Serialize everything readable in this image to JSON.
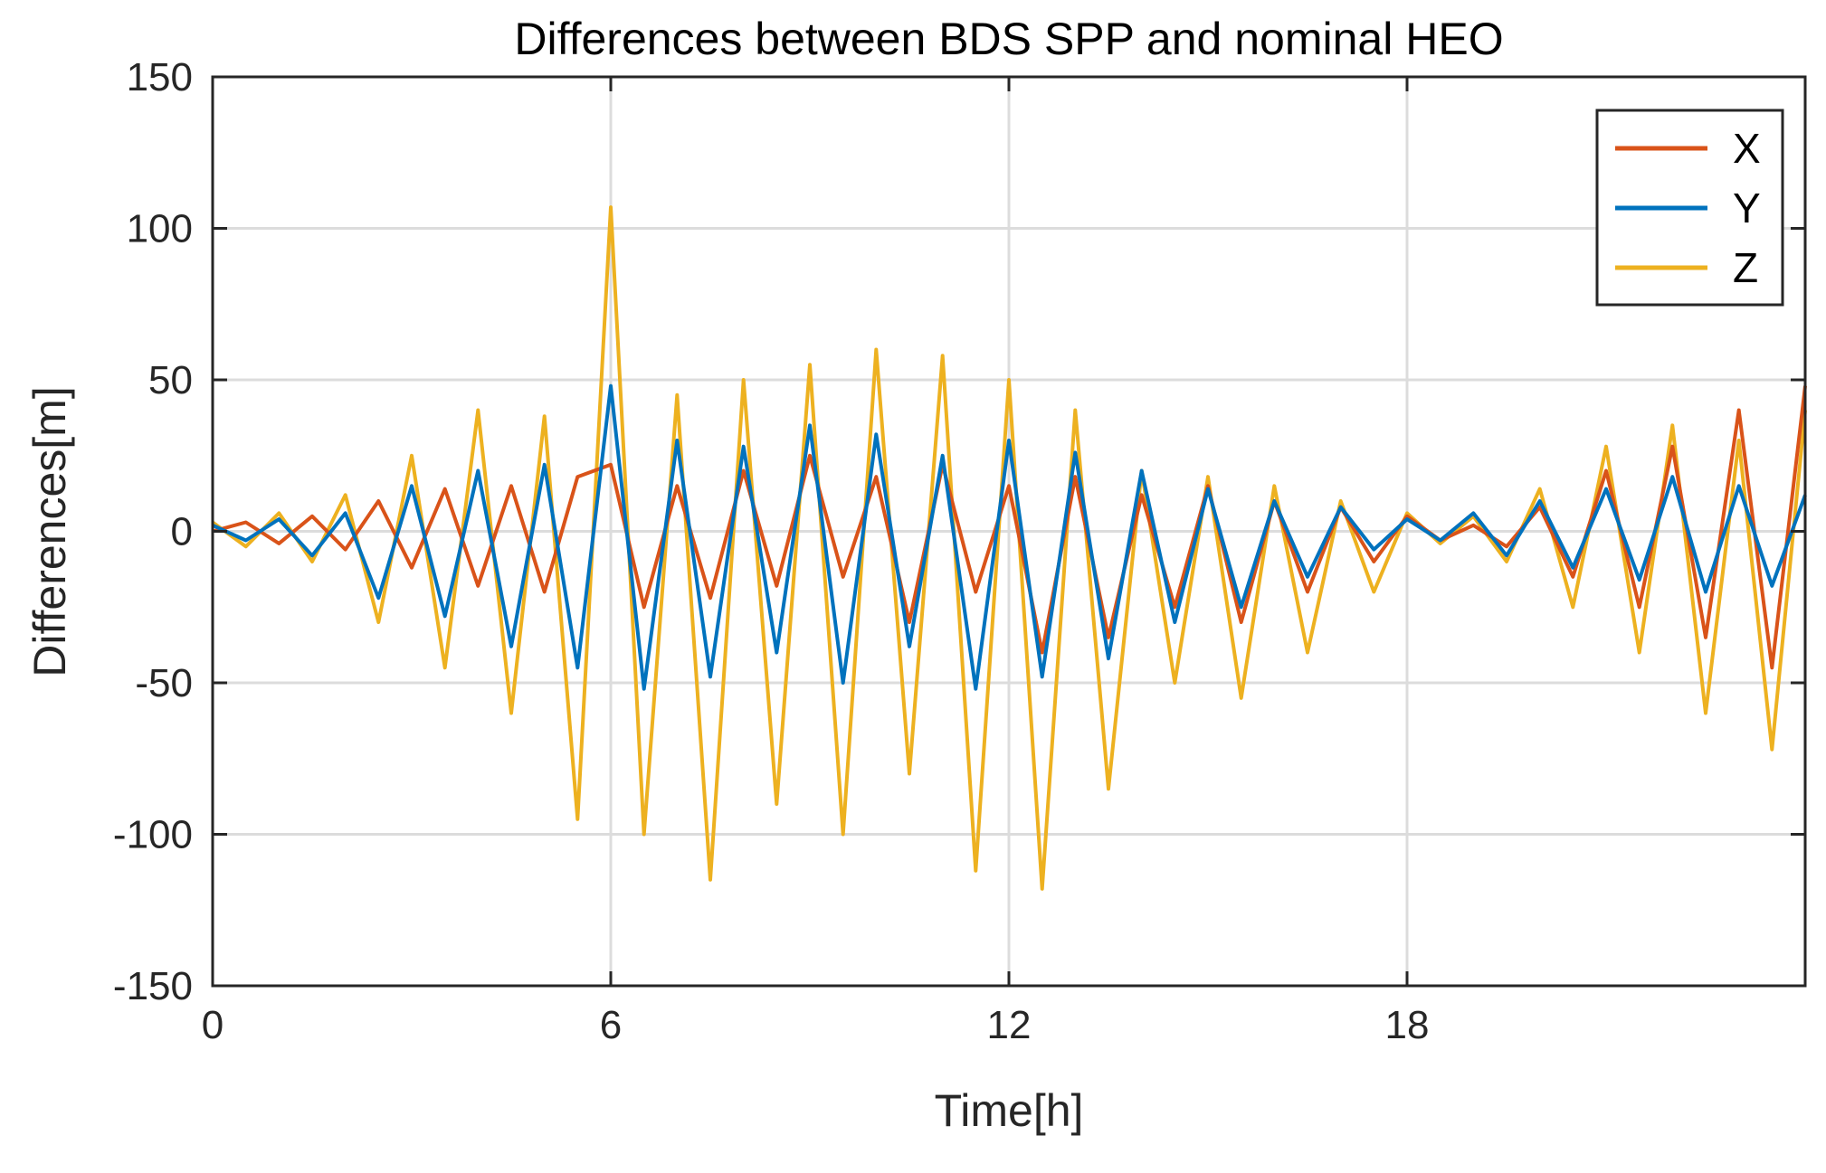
{
  "chart_data": {
    "type": "line",
    "title": "Differences between BDS SPP and nominal HEO",
    "xlabel": "Time[h]",
    "ylabel": "Differences[m]",
    "xlim": [
      0,
      24
    ],
    "ylim": [
      -150,
      150
    ],
    "xticks": [
      0,
      6,
      12,
      18
    ],
    "xtick_labels": [
      "0",
      "6",
      "12",
      "18"
    ],
    "yticks": [
      150,
      100,
      50,
      0,
      -50,
      -100,
      -150
    ],
    "ytick_labels": [
      "150",
      "100",
      "50",
      "0",
      "-50",
      "-100",
      "-150"
    ],
    "grid": true,
    "legend_position": "top-right",
    "x_step_hours": 0.5,
    "series": [
      {
        "name": "X",
        "color": "#D95319",
        "x": [
          0,
          0.5,
          1,
          1.5,
          2,
          2.5,
          3,
          3.5,
          4,
          4.5,
          5,
          5.5,
          6,
          6.5,
          7,
          7.5,
          8,
          8.5,
          9,
          9.5,
          10,
          10.5,
          11,
          11.5,
          12,
          12.5,
          13,
          13.5,
          14,
          14.5,
          15,
          15.5,
          16,
          16.5,
          17,
          17.5,
          18,
          18.5,
          19,
          19.5,
          20,
          20.5,
          21,
          21.5,
          22,
          22.5,
          23,
          23.5,
          24
        ],
        "y": [
          0,
          3,
          -4,
          5,
          -6,
          10,
          -12,
          14,
          -18,
          15,
          -20,
          18,
          22,
          -25,
          15,
          -22,
          20,
          -18,
          25,
          -15,
          18,
          -30,
          22,
          -20,
          15,
          -40,
          18,
          -35,
          12,
          -25,
          15,
          -30,
          10,
          -20,
          8,
          -10,
          5,
          -3,
          2,
          -5,
          8,
          -15,
          20,
          -25,
          28,
          -35,
          40,
          -45,
          48
        ]
      },
      {
        "name": "Y",
        "color": "#0072BD",
        "x": [
          0,
          0.5,
          1,
          1.5,
          2,
          2.5,
          3,
          3.5,
          4,
          4.5,
          5,
          5.5,
          6,
          6.5,
          7,
          7.5,
          8,
          8.5,
          9,
          9.5,
          10,
          10.5,
          11,
          11.5,
          12,
          12.5,
          13,
          13.5,
          14,
          14.5,
          15,
          15.5,
          16,
          16.5,
          17,
          17.5,
          18,
          18.5,
          19,
          19.5,
          20,
          20.5,
          21,
          21.5,
          22,
          22.5,
          23,
          23.5,
          24
        ],
        "y": [
          2,
          -3,
          4,
          -8,
          6,
          -22,
          15,
          -28,
          20,
          -38,
          22,
          -45,
          48,
          -52,
          30,
          -48,
          28,
          -40,
          35,
          -50,
          32,
          -38,
          25,
          -52,
          30,
          -48,
          26,
          -42,
          20,
          -30,
          14,
          -25,
          10,
          -15,
          8,
          -6,
          4,
          -3,
          6,
          -8,
          10,
          -12,
          14,
          -16,
          18,
          -20,
          15,
          -18,
          12
        ]
      },
      {
        "name": "Z",
        "color": "#EDB120",
        "x": [
          0,
          0.5,
          1,
          1.5,
          2,
          2.5,
          3,
          3.5,
          4,
          4.5,
          5,
          5.5,
          6,
          6.5,
          7,
          7.5,
          8,
          8.5,
          9,
          9.5,
          10,
          10.5,
          11,
          11.5,
          12,
          12.5,
          13,
          13.5,
          14,
          14.5,
          15,
          15.5,
          16,
          16.5,
          17,
          17.5,
          18,
          18.5,
          19,
          19.5,
          20,
          20.5,
          21,
          21.5,
          22,
          22.5,
          23,
          23.5,
          24
        ],
        "y": [
          3,
          -5,
          6,
          -10,
          12,
          -30,
          25,
          -45,
          40,
          -60,
          38,
          -95,
          107,
          -100,
          45,
          -115,
          50,
          -90,
          55,
          -100,
          60,
          -80,
          58,
          -112,
          50,
          -118,
          40,
          -85,
          20,
          -50,
          18,
          -55,
          15,
          -40,
          10,
          -20,
          6,
          -4,
          5,
          -10,
          14,
          -25,
          28,
          -40,
          35,
          -60,
          30,
          -72,
          40
        ]
      }
    ]
  }
}
